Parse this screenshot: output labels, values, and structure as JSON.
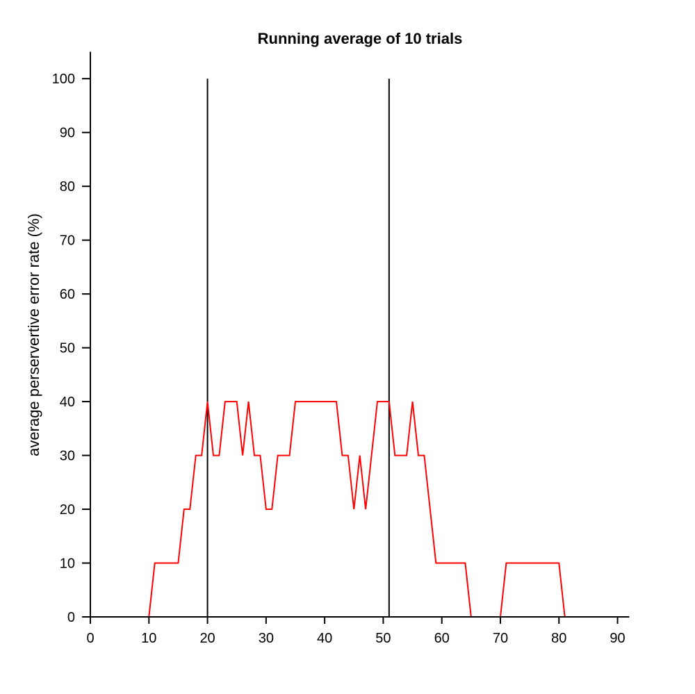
{
  "chart_data": {
    "type": "line",
    "title": "Running average of 10 trials",
    "xlabel": "",
    "ylabel": "average perservertive error rate (%)",
    "xlim": [
      0,
      92
    ],
    "ylim": [
      0,
      105
    ],
    "xticks": [
      0,
      10,
      20,
      30,
      40,
      50,
      60,
      70,
      80,
      90
    ],
    "yticks": [
      0,
      10,
      20,
      30,
      40,
      50,
      60,
      70,
      80,
      90,
      100
    ],
    "grid": false,
    "legend": "none",
    "vlines": [
      {
        "x": 20,
        "y0": 0,
        "y1": 100,
        "color": "#000000"
      },
      {
        "x": 51,
        "y0": 0,
        "y1": 100,
        "color": "#000000"
      }
    ],
    "series": [
      {
        "color": "#ff0000",
        "x": [
          1,
          2,
          3,
          4,
          5,
          6,
          7,
          8,
          9,
          10,
          11,
          12,
          13,
          14,
          15,
          16,
          17,
          18,
          19,
          20,
          21,
          22,
          23,
          24,
          25,
          26,
          27,
          28,
          29,
          30,
          31,
          32,
          33,
          34,
          35,
          36,
          37,
          38,
          39,
          40,
          41,
          42,
          43,
          44,
          45,
          46,
          47,
          48,
          49,
          50,
          51,
          52,
          53,
          54,
          55,
          56,
          57,
          58,
          59,
          60,
          61,
          62,
          63,
          64,
          65,
          66,
          67,
          68,
          69,
          70,
          71,
          72,
          73,
          74,
          75,
          76,
          77,
          78,
          79,
          80,
          81,
          82,
          83,
          84,
          85,
          86,
          87,
          88,
          89,
          90,
          91,
          92
        ],
        "values": [
          0,
          0,
          0,
          0,
          0,
          0,
          0,
          0,
          0,
          0,
          10,
          10,
          10,
          10,
          10,
          20,
          20,
          30,
          30,
          40,
          30,
          30,
          40,
          40,
          40,
          30,
          40,
          30,
          30,
          20,
          20,
          30,
          30,
          30,
          40,
          40,
          40,
          40,
          40,
          40,
          40,
          40,
          30,
          30,
          20,
          30,
          20,
          30,
          40,
          40,
          40,
          30,
          30,
          30,
          40,
          30,
          30,
          20,
          10,
          10,
          10,
          10,
          10,
          10,
          0,
          0,
          0,
          0,
          0,
          0,
          10,
          10,
          10,
          10,
          10,
          10,
          10,
          10,
          10,
          10,
          0,
          0,
          0,
          0,
          0,
          0,
          0,
          0,
          0,
          0,
          0,
          0
        ]
      }
    ]
  }
}
